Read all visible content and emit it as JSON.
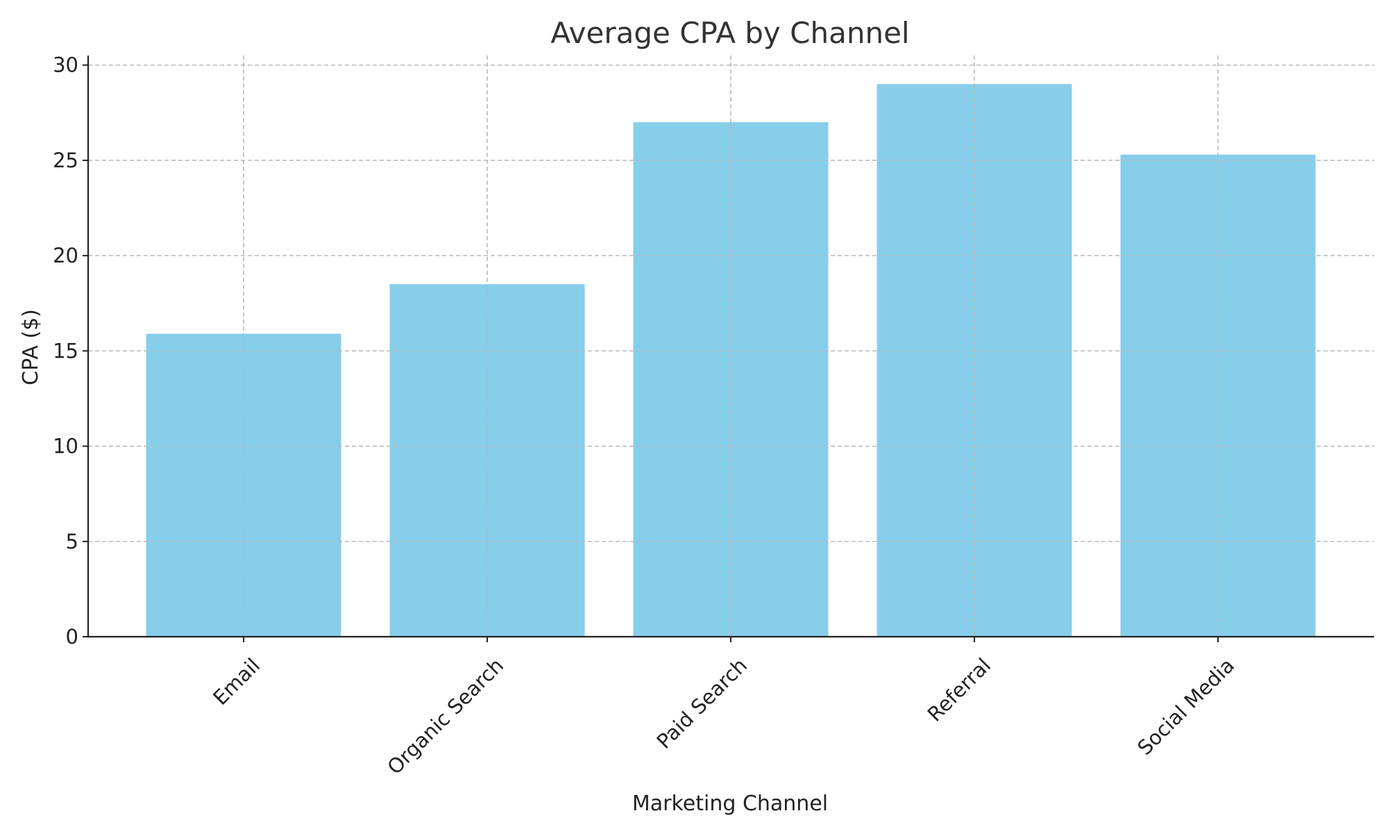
{
  "chart_data": {
    "type": "bar",
    "title": "Average CPA by Channel",
    "xlabel": "Marketing Channel",
    "ylabel": "CPA ($)",
    "categories": [
      "Email",
      "Organic Search",
      "Paid Search",
      "Referral",
      "Social Media"
    ],
    "values": [
      15.9,
      18.5,
      27.0,
      29.0,
      25.3
    ],
    "ylim": [
      0,
      30.5
    ],
    "yticks": [
      0,
      5,
      10,
      15,
      20,
      25,
      30
    ],
    "grid": true,
    "bar_color": "#87CEEB"
  }
}
